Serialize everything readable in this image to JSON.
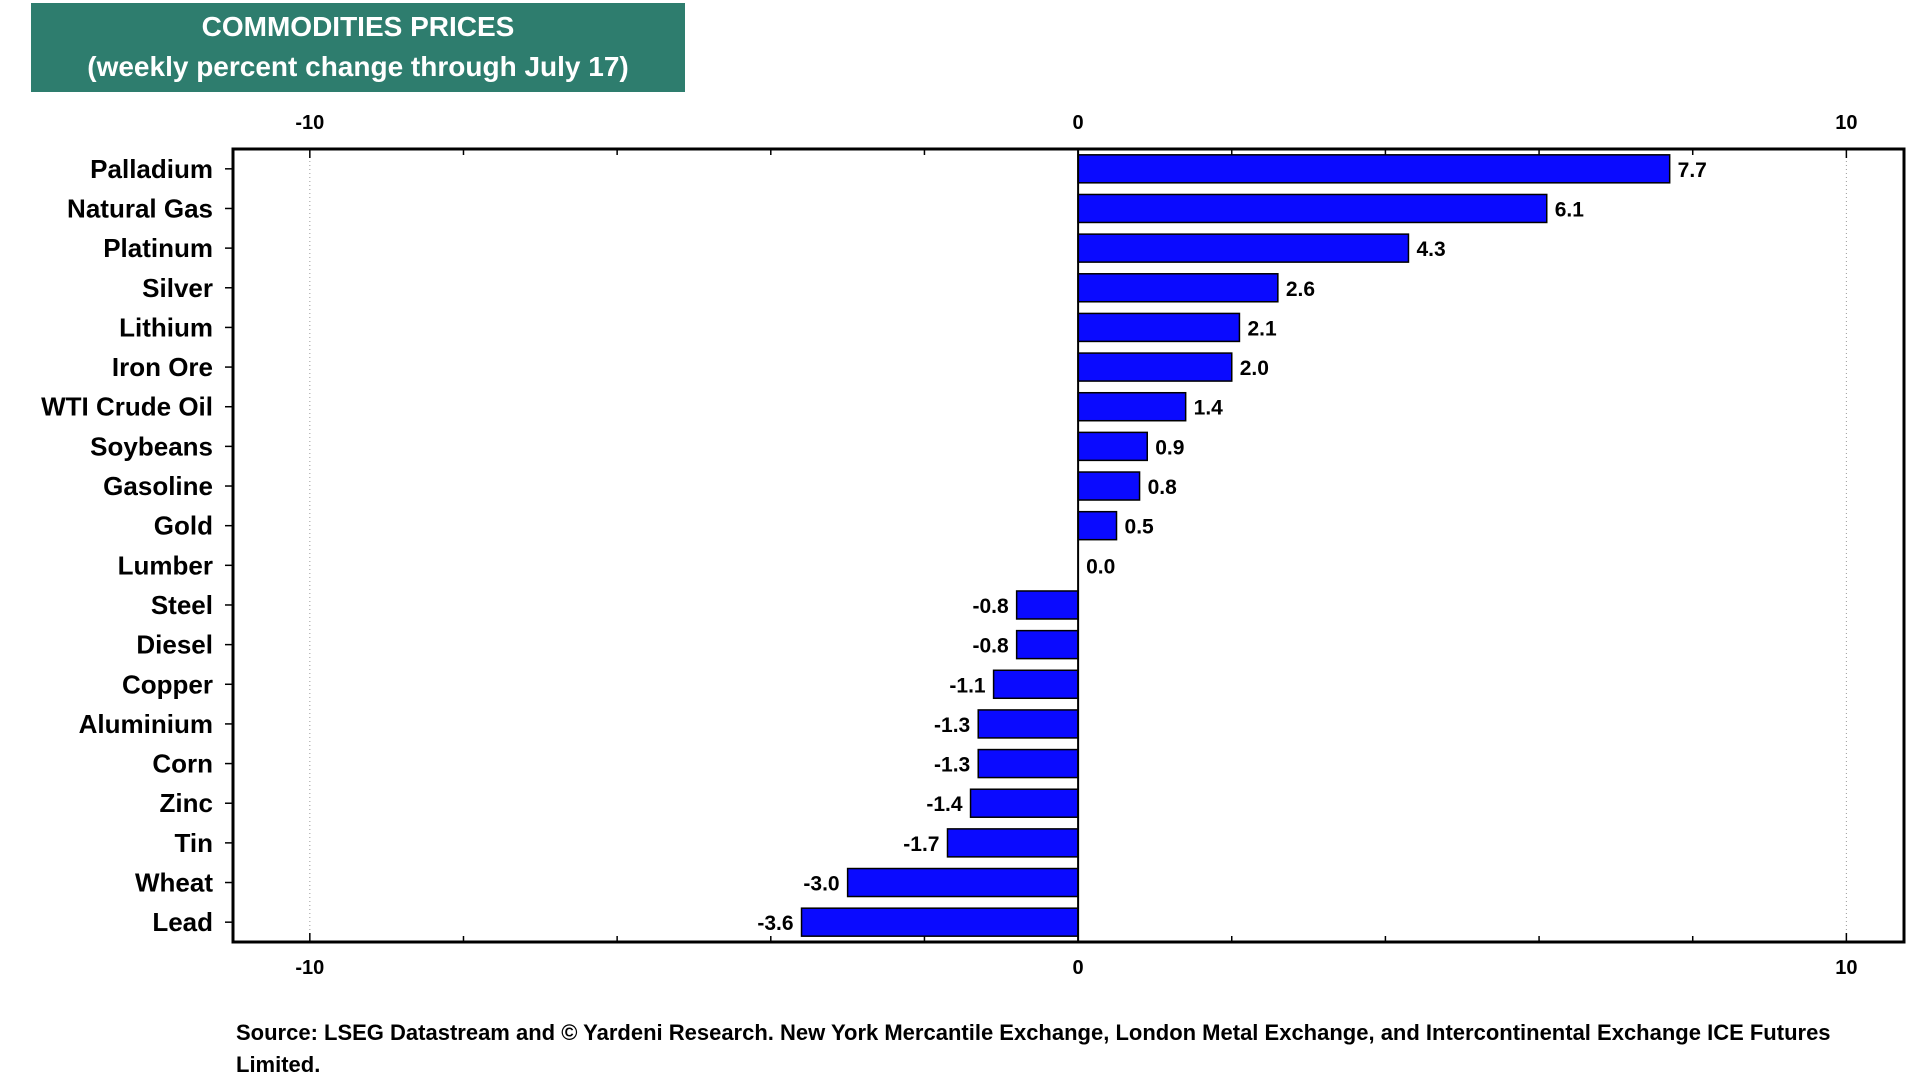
{
  "header": {
    "title": "COMMODITIES PRICES",
    "subtitle": "(weekly percent change through July 17)"
  },
  "source_note": "Source: LSEG Datastream and © Yardeni Research. New York Mercantile Exchange, London Metal Exchange, and Intercontinental Exchange ICE Futures Limited.",
  "colors": {
    "bar": "#0A0AFF",
    "title_background": "#2E7D6E"
  },
  "chart_data": {
    "type": "bar",
    "orientation": "horizontal",
    "title": "COMMODITIES PRICES",
    "subtitle": "(weekly percent change through July 17)",
    "xlim": [
      -11,
      10.75
    ],
    "x_ticks": [
      -10,
      0,
      10
    ],
    "x_tick_labels": [
      "-10",
      "0",
      "10"
    ],
    "grid": "vertical dotted",
    "categories": [
      "Palladium",
      "Natural Gas",
      "Platinum",
      "Silver",
      "Lithium",
      "Iron Ore",
      "WTI Crude Oil",
      "Soybeans",
      "Gasoline",
      "Gold",
      "Lumber",
      "Steel",
      "Diesel",
      "Copper",
      "Aluminium",
      "Corn",
      "Zinc",
      "Tin",
      "Wheat",
      "Lead"
    ],
    "values": [
      7.7,
      6.1,
      4.3,
      2.6,
      2.1,
      2.0,
      1.4,
      0.9,
      0.8,
      0.5,
      0.0,
      -0.8,
      -0.8,
      -1.1,
      -1.3,
      -1.3,
      -1.4,
      -1.7,
      -3.0,
      -3.6
    ],
    "value_labels": [
      "7.7",
      "6.1",
      "4.3",
      "2.6",
      "2.1",
      "2.0",
      "1.4",
      "0.9",
      "0.8",
      "0.5",
      "0.0",
      "-0.8",
      "-0.8",
      "-1.1",
      "-1.3",
      "-1.3",
      "-1.4",
      "-1.7",
      "-3.0",
      "-3.6"
    ]
  }
}
